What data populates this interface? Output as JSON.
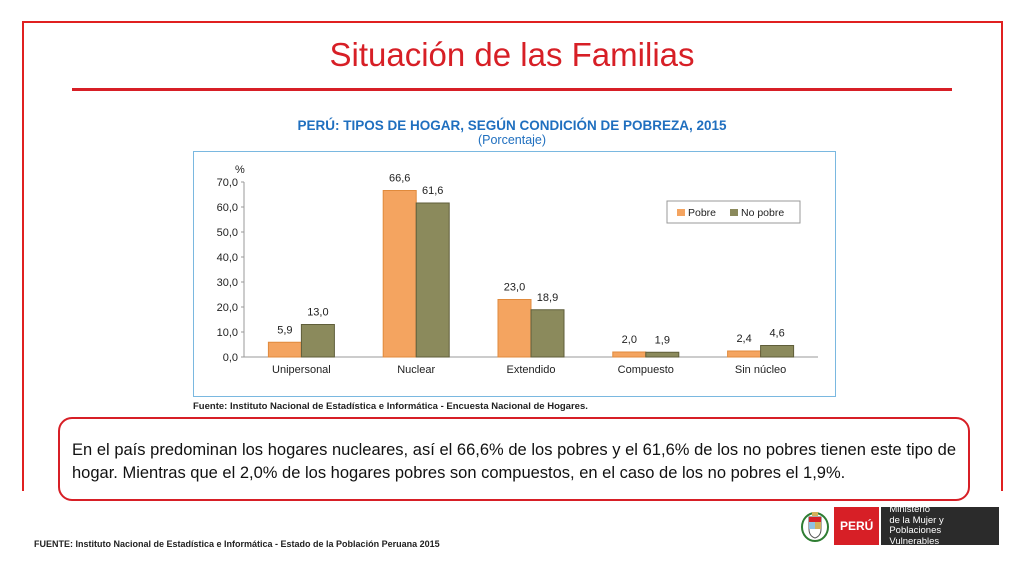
{
  "slide": {
    "title": "Situación de las Familias",
    "note": "En el país predominan los hogares nucleares, así el 66,6% de los pobres y el 61,6% de los no pobres tienen este tipo de hogar. Mientras que el 2,0% de los hogares pobres son compuestos, en el caso de los no pobres el 1,9%.",
    "footer_source": "FUENTE: Instituto Nacional de Estadística e Informática - Estado de la Población Peruana 2015"
  },
  "ministry": {
    "peru": "PERÚ",
    "line1": "Ministerio",
    "line2": "de la Mujer y",
    "line3": "Poblaciones Vulnerables"
  },
  "chart_data": {
    "type": "bar",
    "title": "PERÚ: TIPOS DE HOGAR, SEGÚN CONDICIÓN DE POBREZA, 2015",
    "subtitle": "(Porcentaje)",
    "ylabel": "%",
    "xlabel": "",
    "ylim": [
      0,
      70
    ],
    "yticks": [
      "0,0",
      "10,0",
      "20,0",
      "30,0",
      "40,0",
      "50,0",
      "60,0",
      "70,0"
    ],
    "categories": [
      "Unipersonal",
      "Nuclear",
      "Extendido",
      "Compuesto",
      "Sin núcleo"
    ],
    "series": [
      {
        "name": "Pobre",
        "color": "#f4a460",
        "values": [
          5.9,
          66.6,
          23.0,
          2.0,
          2.4
        ],
        "labels": [
          "5,9",
          "66,6",
          "23,0",
          "2,0",
          "2,4"
        ]
      },
      {
        "name": "No pobre",
        "color": "#8b8a5c",
        "values": [
          13.0,
          61.6,
          18.9,
          1.9,
          4.6
        ],
        "labels": [
          "13,0",
          "61,6",
          "18,9",
          "1,9",
          "4,6"
        ]
      }
    ],
    "legend_position": "top-right",
    "source": "Fuente: Instituto Nacional de Estadística e Informática -  Encuesta Nacional de Hogares."
  }
}
